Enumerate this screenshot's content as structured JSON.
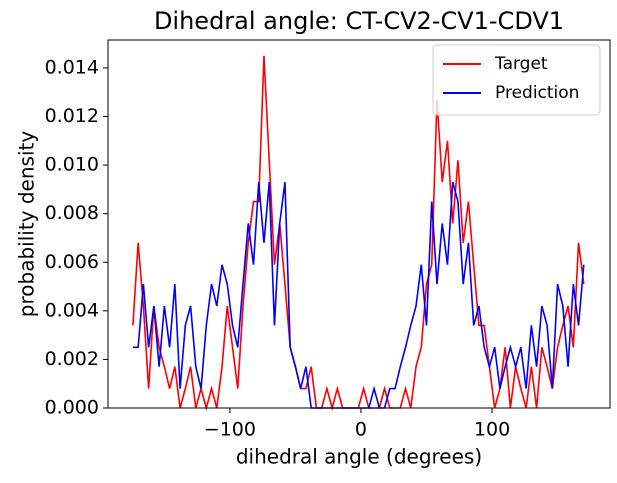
{
  "chart_data": {
    "type": "line",
    "title": "Dihedral angle: CT-CV2-CV1-CDV1",
    "x_label": "dihedral angle (degrees)",
    "y_label": "probability density",
    "x": [
      -174,
      -170,
      -166,
      -162,
      -158,
      -154,
      -150,
      -146,
      -142,
      -138,
      -134,
      -130,
      -126,
      -122,
      -118,
      -114,
      -110,
      -106,
      -102,
      -98,
      -94,
      -90,
      -86,
      -82,
      -78,
      -74,
      -70,
      -66,
      -62,
      -58,
      -54,
      -50,
      -46,
      -42,
      -38,
      -34,
      -30,
      -26,
      -22,
      -18,
      -14,
      -10,
      -6,
      -2,
      2,
      6,
      10,
      14,
      18,
      22,
      26,
      30,
      34,
      38,
      42,
      46,
      50,
      54,
      58,
      62,
      66,
      70,
      74,
      78,
      82,
      86,
      90,
      94,
      98,
      102,
      106,
      110,
      114,
      118,
      122,
      126,
      130,
      134,
      138,
      142,
      146,
      150,
      154,
      158,
      162,
      166,
      170
    ],
    "series": [
      {
        "name": "Target",
        "color": "#ff0000",
        "values": [
          0.0034,
          0.0068,
          0.0042,
          0.0008,
          0.0042,
          0.0025,
          0.0017,
          0.0008,
          0.0017,
          0.0,
          0.0008,
          0.0017,
          0.0,
          0.0008,
          0.0,
          0.0008,
          0.0,
          0.0017,
          0.0042,
          0.0025,
          0.0008,
          0.0042,
          0.0068,
          0.0085,
          0.0085,
          0.0145,
          0.0102,
          0.0059,
          0.0076,
          0.0051,
          0.0025,
          0.0017,
          0.0008,
          0.0008,
          0.0017,
          0.0,
          0.0,
          0.0008,
          0.0,
          0.0008,
          0.0,
          0.0,
          0.0,
          0.0,
          0.0008,
          0.0,
          0.0,
          0.0,
          0.0008,
          0.0,
          0.0,
          0.0,
          0.0008,
          0.0,
          0.0017,
          0.0025,
          0.0051,
          0.0059,
          0.0127,
          0.0093,
          0.011,
          0.0076,
          0.0102,
          0.0068,
          0.0085,
          0.0059,
          0.0034,
          0.0034,
          0.0017,
          0.0,
          0.0008,
          0.0025,
          0.0,
          0.0017,
          0.0008,
          0.0,
          0.0017,
          0.0,
          0.0025,
          0.0017,
          0.0008,
          0.0025,
          0.0034,
          0.0042,
          0.0025,
          0.0068,
          0.0051
        ]
      },
      {
        "name": "Prediction",
        "color": "#0000ff",
        "values": [
          0.0025,
          0.0025,
          0.0051,
          0.0025,
          0.0042,
          0.0017,
          0.0042,
          0.0025,
          0.0051,
          0.0008,
          0.0034,
          0.0042,
          0.0017,
          0.0008,
          0.0034,
          0.0051,
          0.0042,
          0.0059,
          0.0051,
          0.0034,
          0.0025,
          0.0051,
          0.0076,
          0.0059,
          0.0093,
          0.0068,
          0.0093,
          0.0034,
          0.0076,
          0.0093,
          0.0025,
          0.0017,
          0.0008,
          0.0017,
          0.0,
          0.0,
          0.0,
          0.0,
          0.0,
          0.0,
          0.0,
          0.0,
          0.0,
          0.0,
          0.0,
          0.0,
          0.0008,
          0.0,
          0.0,
          0.0008,
          0.0008,
          0.0017,
          0.0025,
          0.0034,
          0.0042,
          0.0059,
          0.0034,
          0.0085,
          0.0051,
          0.0076,
          0.0059,
          0.0093,
          0.0085,
          0.0051,
          0.0068,
          0.0034,
          0.0042,
          0.0025,
          0.0017,
          0.0025,
          0.0008,
          0.0017,
          0.0025,
          0.0017,
          0.0025,
          0.0008,
          0.0034,
          0.0017,
          0.0042,
          0.0034,
          0.0008,
          0.0051,
          0.0042,
          0.0017,
          0.0051,
          0.0034,
          0.0059
        ]
      }
    ],
    "xlim": [
      -193,
      190
    ],
    "ylim": [
      0,
      0.01515
    ],
    "xticks": [
      {
        "value": -100,
        "label": "−100"
      },
      0,
      100
    ],
    "yticks": [
      {
        "value": 0,
        "label": "0.000"
      },
      {
        "value": 0.002,
        "label": "0.002"
      },
      {
        "value": 0.004,
        "label": "0.004"
      },
      {
        "value": 0.006,
        "label": "0.006"
      },
      {
        "value": 0.008,
        "label": "0.008"
      },
      {
        "value": 0.01,
        "label": "0.010"
      },
      {
        "value": 0.012,
        "label": "0.012"
      },
      {
        "value": 0.014,
        "label": "0.014"
      }
    ],
    "legend": "upper right",
    "grid": false
  }
}
